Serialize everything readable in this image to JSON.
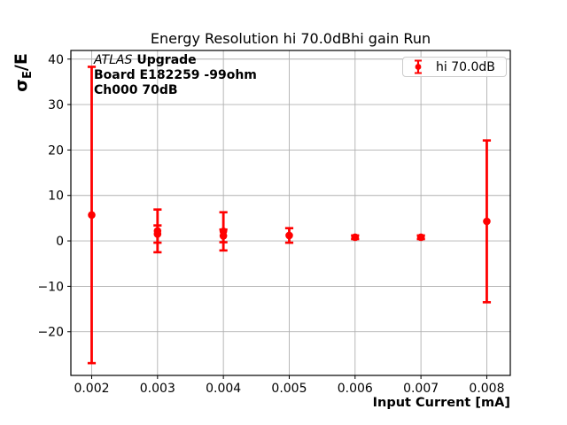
{
  "figure": {
    "title": "Energy Resolution hi 70.0dBhi gain Run",
    "xlabel": "Input Current [mA]",
    "ylabel": {
      "sigma": "σ",
      "sub": "E",
      "rest": "/E"
    }
  },
  "annotation": {
    "line1_italic": "ATLAS",
    "line1_bold": "Upgrade",
    "line2": "Board E182259 -99ohm",
    "line3": "Ch000 70dB"
  },
  "legend": {
    "label": "hi 70.0dB"
  },
  "colors": {
    "series": "#ff0000",
    "grid": "#b0b0b0",
    "spine": "#000000",
    "legend_border": "#cccccc",
    "background": "#ffffff"
  },
  "chart_data": {
    "type": "scatter",
    "title": "Energy Resolution hi 70.0dBhi gain Run",
    "xlabel": "Input Current [mA]",
    "ylabel": "σ_E/E",
    "xlim": [
      0.001684,
      0.008357
    ],
    "ylim": [
      -29.6,
      41.9
    ],
    "grid": true,
    "legend_position": "upper right",
    "x_ticks": [
      0.002,
      0.003,
      0.004,
      0.005,
      0.006,
      0.007,
      0.008
    ],
    "x_tick_labels": [
      "0.002",
      "0.003",
      "0.004",
      "0.005",
      "0.006",
      "0.007",
      "0.008"
    ],
    "y_ticks": [
      40,
      30,
      20,
      10,
      0,
      -10,
      -20
    ],
    "y_tick_labels": [
      "40",
      "30",
      "20",
      "10",
      "0",
      "−10",
      "−20"
    ],
    "series": [
      {
        "name": "hi 70.0dB",
        "color": "#ff0000",
        "marker": "o",
        "points": [
          {
            "x": 0.002,
            "y": 5.7,
            "yerr": 32.6
          },
          {
            "x": 0.003,
            "y": 2.2,
            "yerr": 4.7
          },
          {
            "x": 0.003,
            "y": 1.5,
            "yerr": 1.9
          },
          {
            "x": 0.004,
            "y": 2.1,
            "yerr": 4.2
          },
          {
            "x": 0.004,
            "y": 1.1,
            "yerr": 1.4
          },
          {
            "x": 0.005,
            "y": 1.2,
            "yerr": 1.6
          },
          {
            "x": 0.006,
            "y": 0.8,
            "yerr": 0.4
          },
          {
            "x": 0.007,
            "y": 0.8,
            "yerr": 0.4
          },
          {
            "x": 0.008,
            "y": 4.3,
            "yerr": 17.8
          }
        ]
      }
    ]
  }
}
